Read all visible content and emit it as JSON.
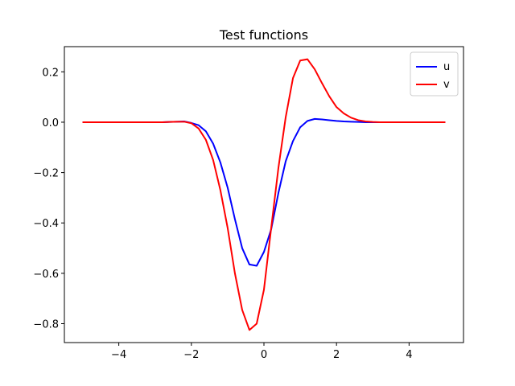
{
  "chart_data": {
    "type": "line",
    "title": "Test functions",
    "xlabel": "",
    "ylabel": "",
    "xlim": [
      -5.5,
      5.5
    ],
    "ylim": [
      -0.875,
      0.3
    ],
    "xticks": [
      -4,
      -2,
      0,
      2,
      4
    ],
    "xtick_labels": [
      "−4",
      "−2",
      "0",
      "2",
      "4"
    ],
    "yticks": [
      -0.8,
      -0.6,
      -0.4,
      -0.2,
      0.0,
      0.2
    ],
    "ytick_labels": [
      "−0.8",
      "−0.6",
      "−0.4",
      "−0.2",
      "0.0",
      "0.2"
    ],
    "grid": false,
    "legend_position": "top-right",
    "x": [
      -5.0,
      -4.8,
      -4.6,
      -4.4,
      -4.2,
      -4.0,
      -3.8,
      -3.6,
      -3.4,
      -3.2,
      -3.0,
      -2.8,
      -2.6,
      -2.4,
      -2.2,
      -2.0,
      -1.8,
      -1.6,
      -1.4,
      -1.2,
      -1.0,
      -0.8,
      -0.6,
      -0.4,
      -0.2,
      0.0,
      0.2,
      0.4,
      0.6,
      0.8,
      1.0,
      1.2,
      1.4,
      1.6,
      1.8,
      2.0,
      2.2,
      2.4,
      2.6,
      2.8,
      3.0,
      3.2,
      3.4,
      3.6,
      3.8,
      4.0,
      4.2,
      4.4,
      4.6,
      4.8,
      5.0
    ],
    "series": [
      {
        "name": "u",
        "color": "#0000ff",
        "values": [
          0,
          0,
          0,
          0,
          0,
          0,
          0,
          0,
          0,
          0,
          0,
          0,
          0.001,
          0.002,
          0.003,
          -0.003,
          -0.012,
          -0.036,
          -0.085,
          -0.16,
          -0.26,
          -0.385,
          -0.5,
          -0.565,
          -0.57,
          -0.515,
          -0.425,
          -0.28,
          -0.155,
          -0.075,
          -0.02,
          0.005,
          0.013,
          0.011,
          0.008,
          0.005,
          0.003,
          0.002,
          0.001,
          0,
          0,
          0,
          0,
          0,
          0,
          0,
          0,
          0,
          0,
          0,
          0
        ]
      },
      {
        "name": "v",
        "color": "#ff0000",
        "values": [
          0,
          0,
          0,
          0,
          0,
          0,
          0,
          0,
          0,
          0,
          0,
          0,
          0.001,
          0.002,
          0.002,
          -0.004,
          -0.025,
          -0.07,
          -0.15,
          -0.27,
          -0.42,
          -0.6,
          -0.745,
          -0.825,
          -0.8,
          -0.665,
          -0.42,
          -0.18,
          0.02,
          0.175,
          0.245,
          0.25,
          0.21,
          0.155,
          0.103,
          0.06,
          0.035,
          0.018,
          0.008,
          0.003,
          0.001,
          0,
          0,
          0,
          0,
          0,
          0,
          0,
          0,
          0,
          0
        ]
      }
    ]
  }
}
